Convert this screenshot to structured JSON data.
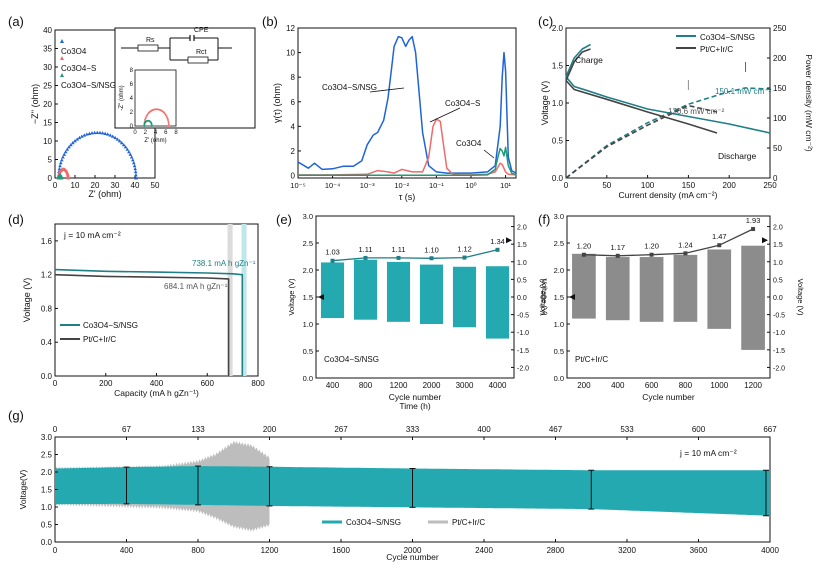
{
  "colors": {
    "teal": "#24a9b0",
    "tealDark": "#1f7f86",
    "blue": "#1f63d8",
    "red": "#ee6b6b",
    "green": "#1e9a7a",
    "gray": "#8e8e8e",
    "darkgray": "#444444",
    "black": "#111111"
  },
  "panels": {
    "a": {
      "tag": "(a)",
      "xlabel": "Z' (ohm)",
      "ylabel": "−Z'' (ohm)",
      "ylabel_short": "-Z'' (ohm)",
      "xlabel_short": "Z' (ohm)",
      "legend": [
        "Co3O4",
        "Co3O4−S",
        "Co3O4−S/NSG"
      ],
      "circuit": {
        "rs": "Rs",
        "cpe": "CPE",
        "rct": "Rct"
      }
    },
    "b": {
      "tag": "(b)",
      "xlabel": "τ (s)",
      "ylabel": "γ(τ) (ohm)",
      "annotations": [
        "Co3O4−S/NSG",
        "Co3O4−S",
        "Co3O4"
      ]
    },
    "c": {
      "tag": "(c)",
      "xlabel": "Current density (mA cm⁻²)",
      "ylabel": "Voltage (V)",
      "y2label": "Power density (mW cm⁻²)",
      "legend": [
        "Co3O4−S/NSG",
        "Pt/C+Ir/C"
      ],
      "charge": "Charge",
      "discharge": "Discharge",
      "peak1": "150.1 mW cm⁻²",
      "peak2": "120.6 mW cm⁻²"
    },
    "d": {
      "tag": "(d)",
      "xlabel": "Capacity (mA h gZn⁻¹)",
      "ylabel": "Voltage (V)",
      "jlabel": "j = 10 mA cm⁻²",
      "legend": [
        "Co3O4−S/NSG",
        "Pt/C+Ir/C"
      ],
      "cap1": "738.1 mA h gZn⁻¹",
      "cap2": "684.1 mA h gZn⁻¹"
    },
    "e": {
      "tag": "(e)",
      "xlabel": "Cycle number",
      "ylabel": "Voltage (V)",
      "y2label": "Voltage (V)",
      "sample": "Co3O4−S/NSG",
      "toplabel": "Time (h)"
    },
    "f": {
      "tag": "(f)",
      "xlabel": "Cycle number",
      "ylabel": "Voltage (V)",
      "y2label": "Voltage (V)",
      "sample": "Pt/C+Ir/C"
    },
    "g": {
      "tag": "(g)",
      "xlabel": "Cycle number",
      "ylabel": "Voltage(V)",
      "jlabel": "j = 10 mA cm⁻²",
      "legend": [
        "Co3O4−S/NSG",
        "Pt/C+Ir/C"
      ]
    }
  },
  "chart_data": [
    {
      "panel": "a",
      "type": "scatter",
      "title": "",
      "xlabel": "Z' (ohm)",
      "ylabel": "−Z'' (ohm)",
      "xlim": [
        0,
        50
      ],
      "ylim": [
        0,
        40
      ],
      "xticks": [
        0,
        10,
        20,
        30,
        40,
        50
      ],
      "yticks": [
        0,
        5,
        10,
        15,
        20,
        25,
        30,
        35,
        40
      ],
      "series": [
        {
          "name": "Co3O4",
          "shape": "semicircle",
          "x_start": 1.8,
          "x_end": 40.5,
          "peak": 12.3
        },
        {
          "name": "Co3O4−S",
          "shape": "semicircle",
          "x_start": 1.8,
          "x_end": 6.6,
          "peak": 2.4
        },
        {
          "name": "Co3O4−S/NSG",
          "shape": "semicircle",
          "x_start": 1.8,
          "x_end": 3.3,
          "peak": 0.75
        }
      ],
      "inset": {
        "xlim": [
          0,
          8
        ],
        "ylim": [
          0,
          8
        ],
        "xticks": [
          0,
          2,
          4,
          6,
          8
        ],
        "yticks": [
          0,
          2,
          4,
          6,
          8
        ]
      }
    },
    {
      "panel": "b",
      "type": "line",
      "xlabel": "τ (s)",
      "ylabel": "γ(τ) (ohm)",
      "xscale": "log",
      "xlim": [
        1e-05,
        20
      ],
      "ylim": [
        -0.2,
        12
      ],
      "xticks": [
        "10⁻⁵",
        "10⁻⁴",
        "10⁻³",
        "10⁻²",
        "10⁻¹",
        "10⁰",
        "10¹"
      ],
      "yticks": [
        0,
        2,
        4,
        6,
        8,
        10,
        12
      ],
      "series": [
        {
          "name": "Co3O4−S/NSG",
          "x": [
            1e-05,
            2e-05,
            3e-05,
            5e-05,
            0.0001,
            0.0002,
            0.0004,
            0.0007,
            0.001,
            0.0015,
            0.002,
            0.003,
            0.004,
            0.005,
            0.006,
            0.008,
            0.01,
            0.013,
            0.016,
            0.02,
            0.025,
            0.03,
            0.04,
            0.06,
            0.1,
            0.2,
            0.5,
            1,
            3,
            5,
            7,
            8,
            9,
            10,
            12,
            15,
            20
          ],
          "y": [
            1.1,
            0.6,
            1.0,
            0.5,
            0.55,
            0.75,
            0.75,
            1.2,
            2.5,
            3.3,
            3.5,
            4.5,
            6.3,
            8.6,
            10.5,
            11.3,
            11.2,
            10.5,
            11.0,
            11.3,
            10.0,
            7.5,
            3.5,
            0.8,
            0.3,
            0.2,
            0.2,
            0.2,
            0.3,
            0.8,
            4.0,
            8.0,
            10.0,
            8.5,
            1.5,
            0.4,
            0.2
          ]
        },
        {
          "name": "Co3O4−S",
          "x": [
            1e-05,
            0.0001,
            0.001,
            0.002,
            0.004,
            0.006,
            0.01,
            0.02,
            0.04,
            0.06,
            0.08,
            0.1,
            0.13,
            0.16,
            0.2,
            0.3,
            0.5,
            1,
            3,
            5,
            7,
            8,
            10,
            12,
            20
          ],
          "y": [
            0.05,
            0.05,
            0.1,
            0.4,
            0.3,
            0.2,
            0.5,
            0.3,
            0.3,
            1.5,
            4.0,
            4.6,
            4.4,
            2.5,
            0.6,
            0.1,
            0.05,
            0.05,
            0.1,
            0.3,
            1.0,
            0.9,
            0.3,
            0.1,
            0.05
          ]
        },
        {
          "name": "Co3O4",
          "x": [
            1e-05,
            0.001,
            0.1,
            1,
            3,
            5,
            6,
            7,
            8,
            9,
            10,
            12,
            15,
            20
          ],
          "y": [
            0.02,
            0.02,
            0.02,
            0.02,
            0.05,
            0.5,
            1.5,
            2.2,
            2.0,
            1.6,
            2.3,
            0.8,
            0.2,
            0.05
          ]
        }
      ]
    },
    {
      "panel": "c",
      "type": "line",
      "xlabel": "Current density (mA cm⁻²)",
      "ylabel": "Voltage (V)",
      "y2label": "Power density (mW cm⁻²)",
      "xlim": [
        0,
        250
      ],
      "ylim": [
        0,
        2.0
      ],
      "y2lim": [
        0,
        250
      ],
      "xticks": [
        0,
        50,
        100,
        150,
        200,
        250
      ],
      "yticks": [
        0,
        0.5,
        1.0,
        1.5,
        2.0
      ],
      "y2ticks": [
        0,
        50,
        100,
        150,
        200,
        250
      ],
      "series": [
        {
          "name": "Co3O4−S/NSG",
          "kind": "discharge",
          "x": [
            0,
            10,
            25,
            50,
            100,
            150,
            200,
            250
          ],
          "y": [
            1.35,
            1.22,
            1.17,
            1.08,
            0.92,
            0.82,
            0.72,
            0.6
          ]
        },
        {
          "name": "Co3O4−S/NSG",
          "kind": "charge",
          "x": [
            0,
            10,
            20,
            30
          ],
          "y": [
            1.35,
            1.6,
            1.72,
            1.78
          ]
        },
        {
          "name": "Co3O4−S/NSG",
          "kind": "power",
          "axis": "y2",
          "x": [
            0,
            50,
            100,
            150,
            200,
            220,
            250
          ],
          "y": [
            0,
            54,
            92,
            123,
            144,
            150.1,
            148
          ]
        },
        {
          "name": "Pt/C+Ir/C",
          "kind": "discharge",
          "x": [
            0,
            10,
            50,
            100,
            150,
            185
          ],
          "y": [
            1.3,
            1.18,
            1.05,
            0.88,
            0.72,
            0.6
          ]
        },
        {
          "name": "Pt/C+Ir/C",
          "kind": "charge",
          "x": [
            0,
            10,
            20,
            30
          ],
          "y": [
            1.3,
            1.55,
            1.68,
            1.72
          ]
        },
        {
          "name": "Pt/C+Ir/C",
          "kind": "power",
          "axis": "y2",
          "x": [
            0,
            50,
            100,
            150,
            185
          ],
          "y": [
            0,
            52,
            88,
            120.6,
            110
          ]
        }
      ]
    },
    {
      "panel": "d",
      "type": "line",
      "xlabel": "Capacity (mA h gZn⁻¹)",
      "ylabel": "Voltage (V)",
      "xlim": [
        0,
        800
      ],
      "ylim": [
        0,
        1.8
      ],
      "xticks": [
        0,
        200,
        400,
        600,
        800
      ],
      "yticks": [
        0,
        0.4,
        0.8,
        1.2,
        1.6
      ],
      "series": [
        {
          "name": "Co3O4−S/NSG",
          "x": [
            0,
            200,
            400,
            600,
            700,
            738.1,
            738.1
          ],
          "y": [
            1.26,
            1.24,
            1.23,
            1.22,
            1.21,
            1.2,
            0
          ]
        },
        {
          "name": "Pt/C+Ir/C",
          "x": [
            0,
            200,
            400,
            600,
            684.1,
            684.1
          ],
          "y": [
            1.2,
            1.18,
            1.17,
            1.16,
            1.15,
            0
          ]
        }
      ]
    },
    {
      "panel": "e",
      "type": "bar",
      "xlabel": "Cycle number",
      "ylabel": "Voltage (V)",
      "toplabel": "Time (h)",
      "categories": [
        "400",
        "800",
        "1200",
        "2000",
        "3000",
        "4000"
      ],
      "ylim": [
        0,
        3.0
      ],
      "yticks": [
        0,
        0.5,
        1.0,
        1.5,
        2.0,
        2.5,
        3.0
      ],
      "y2lim": [
        -2.3,
        2.3
      ],
      "y2ticks": [
        -2.0,
        -1.5,
        -1.0,
        -0.5,
        0,
        0.5,
        1.0,
        1.5,
        2.0
      ],
      "bars": [
        {
          "top": 2.14,
          "bottom": 1.11
        },
        {
          "top": 2.19,
          "bottom": 1.08
        },
        {
          "top": 2.15,
          "bottom": 1.04
        },
        {
          "top": 2.1,
          "bottom": 1.0
        },
        {
          "top": 2.06,
          "bottom": 0.94
        },
        {
          "top": 2.07,
          "bottom": 0.73
        }
      ],
      "gaps": [
        1.03,
        1.11,
        1.11,
        1.1,
        1.12,
        1.34
      ]
    },
    {
      "panel": "f",
      "type": "bar",
      "xlabel": "Cycle number",
      "ylabel": "Voltage (V)",
      "categories": [
        "200",
        "400",
        "600",
        "800",
        "1000",
        "1200"
      ],
      "ylim": [
        0,
        3.0
      ],
      "yticks": [
        0,
        0.5,
        1.0,
        1.5,
        2.0,
        2.5,
        3.0
      ],
      "y2lim": [
        -2.3,
        2.3
      ],
      "y2ticks": [
        -2.0,
        -1.5,
        -1.0,
        -0.5,
        0,
        0.5,
        1.0,
        1.5,
        2.0
      ],
      "bars": [
        {
          "top": 2.3,
          "bottom": 1.1
        },
        {
          "top": 2.24,
          "bottom": 1.07
        },
        {
          "top": 2.24,
          "bottom": 1.04
        },
        {
          "top": 2.28,
          "bottom": 1.04
        },
        {
          "top": 2.38,
          "bottom": 0.91
        },
        {
          "top": 2.45,
          "bottom": 0.52
        }
      ],
      "gaps": [
        1.2,
        1.17,
        1.2,
        1.24,
        1.47,
        1.93
      ]
    },
    {
      "panel": "g",
      "type": "area",
      "xlabel": "Cycle number",
      "ylabel": "Voltage(V)",
      "xlim": [
        0,
        4000
      ],
      "ylim": [
        0,
        3.0
      ],
      "xticks": [
        0,
        400,
        800,
        1200,
        1600,
        2000,
        2400,
        2800,
        3200,
        3600,
        4000
      ],
      "yticks": [
        0,
        0.5,
        1.0,
        1.5,
        2.0,
        2.5,
        3.0
      ],
      "top_xticks": [
        "0",
        "67",
        "133",
        "200",
        "267",
        "333",
        "400",
        "467",
        "533",
        "600",
        "667"
      ],
      "series": [
        {
          "name": "Co3O4−S/NSG",
          "x": [
            0,
            400,
            800,
            1200,
            2000,
            3000,
            4000
          ],
          "upper": [
            2.1,
            2.14,
            2.17,
            2.15,
            2.1,
            2.05,
            2.05
          ],
          "lower": [
            1.08,
            1.09,
            1.06,
            1.03,
            0.99,
            0.94,
            0.75
          ]
        },
        {
          "name": "Pt/C+Ir/C",
          "x": [
            0,
            300,
            600,
            800,
            900,
            1000,
            1100,
            1200
          ],
          "upper": [
            2.1,
            2.12,
            2.15,
            2.3,
            2.5,
            2.85,
            2.75,
            2.4
          ],
          "lower": [
            1.1,
            1.05,
            1.0,
            0.9,
            0.7,
            0.45,
            0.35,
            0.5
          ]
        }
      ],
      "markers": [
        400,
        800,
        1200,
        2000,
        3000,
        4000
      ]
    }
  ]
}
